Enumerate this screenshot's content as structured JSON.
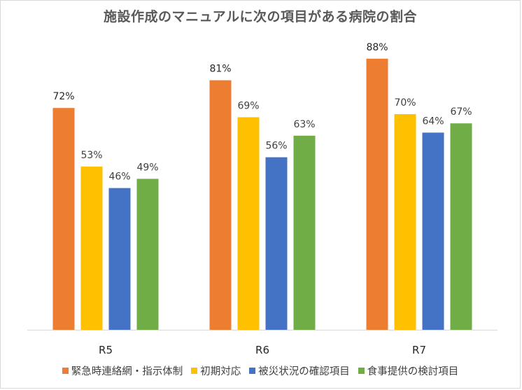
{
  "chart_data": {
    "type": "bar",
    "title": "施設作成のマニュアルに次の項目がある病院の割合",
    "categories": [
      "R5",
      "R6",
      "R7"
    ],
    "series": [
      {
        "name": "緊急時連絡網・指示体制",
        "values": [
          72,
          81,
          88
        ],
        "color": "#ED7D31"
      },
      {
        "name": "初期対応",
        "values": [
          53,
          69,
          70
        ],
        "color": "#FFC000"
      },
      {
        "name": "被災状況の確認項目",
        "values": [
          46,
          56,
          64
        ],
        "color": "#4472C4"
      },
      {
        "name": "食事提供の検討項目",
        "values": [
          49,
          63,
          67
        ],
        "color": "#70AD47"
      }
    ],
    "value_suffix": "%",
    "xlabel": "",
    "ylabel": "",
    "ylim": [
      0,
      100
    ],
    "grid": false,
    "legend_position": "bottom"
  }
}
